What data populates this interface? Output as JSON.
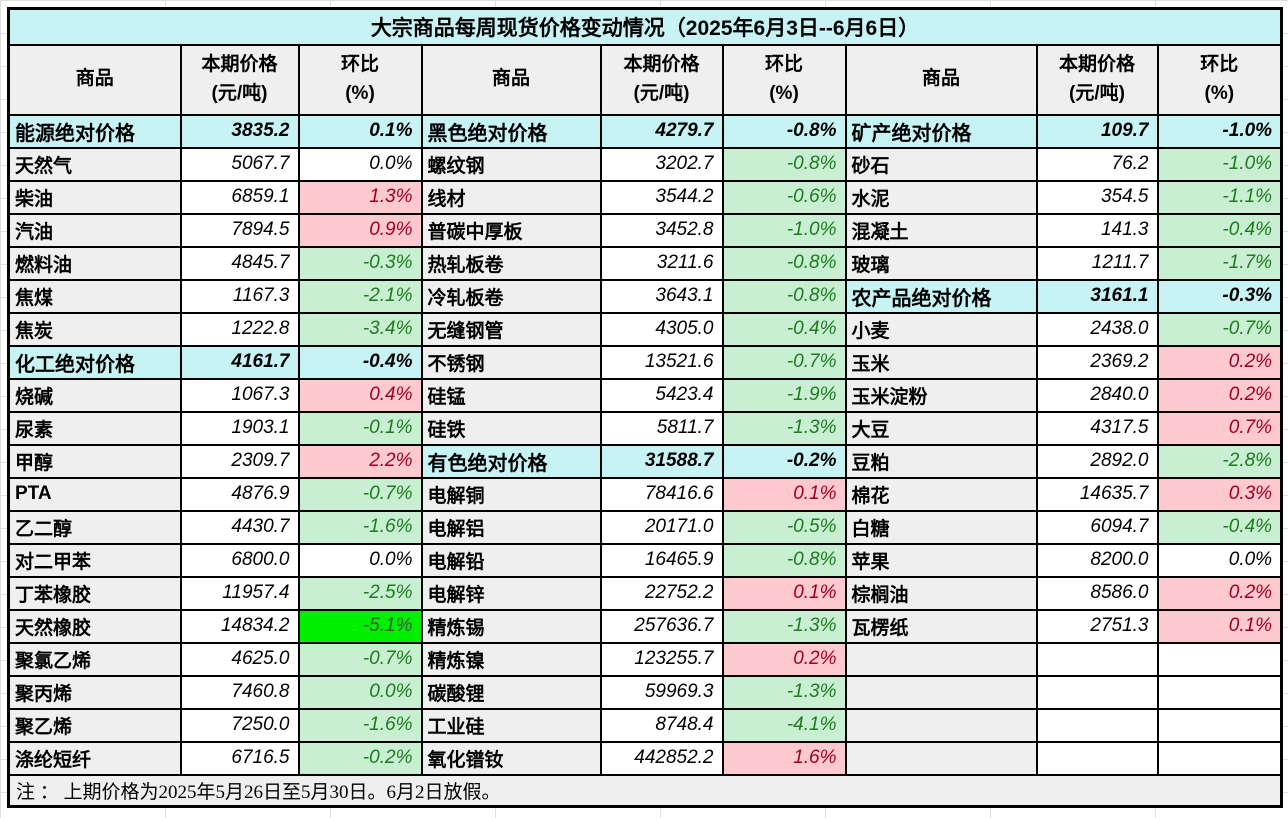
{
  "title": "大宗商品每周现货价格变动情况（2025年6月3日--6月6日）",
  "note": "注 ： 上期价格为2025年5月26日至5月30日。6月2日放假。",
  "header": {
    "commodity": "商品",
    "price_line1": "本期价格",
    "price_line2": "(元/吨)",
    "pct_line1": "环比",
    "pct_line2": "(%)"
  },
  "colors": {
    "cyan": "#c8f3f4",
    "up_bg": "#ffc9d0",
    "up_text": "#a00020",
    "down_bg": "#c8efd2",
    "down_text": "#1e7b1e",
    "strong_bg": "#00ee00",
    "strong_text": "#3a5a3a"
  },
  "groups": [
    {
      "rows": [
        {
          "n": "能源绝对价格",
          "p": "3835.2",
          "c": "0.1%",
          "t": "cat"
        },
        {
          "n": "天然气",
          "p": "5067.7",
          "c": "0.0%",
          "t": "flat"
        },
        {
          "n": "柴油",
          "p": "6859.1",
          "c": "1.3%",
          "t": "up"
        },
        {
          "n": "汽油",
          "p": "7894.5",
          "c": "0.9%",
          "t": "up"
        },
        {
          "n": "燃料油",
          "p": "4845.7",
          "c": "-0.3%",
          "t": "down"
        },
        {
          "n": "焦煤",
          "p": "1167.3",
          "c": "-2.1%",
          "t": "down"
        },
        {
          "n": "焦炭",
          "p": "1222.8",
          "c": "-3.4%",
          "t": "down"
        },
        {
          "n": "化工绝对价格",
          "p": "4161.7",
          "c": "-0.4%",
          "t": "cat"
        },
        {
          "n": "烧碱",
          "p": "1067.3",
          "c": "0.4%",
          "t": "up"
        },
        {
          "n": "尿素",
          "p": "1903.1",
          "c": "-0.1%",
          "t": "down"
        },
        {
          "n": "甲醇",
          "p": "2309.7",
          "c": "2.2%",
          "t": "up"
        },
        {
          "n": "PTA",
          "p": "4876.9",
          "c": "-0.7%",
          "t": "down"
        },
        {
          "n": "乙二醇",
          "p": "4430.7",
          "c": "-1.6%",
          "t": "down"
        },
        {
          "n": "对二甲苯",
          "p": "6800.0",
          "c": "0.0%",
          "t": "flat"
        },
        {
          "n": "丁苯橡胶",
          "p": "11957.4",
          "c": "-2.5%",
          "t": "down"
        },
        {
          "n": "天然橡胶",
          "p": "14834.2",
          "c": "-5.1%",
          "t": "strong"
        },
        {
          "n": "聚氯乙烯",
          "p": "4625.0",
          "c": "-0.7%",
          "t": "down"
        },
        {
          "n": "聚丙烯",
          "p": "7460.8",
          "c": "0.0%",
          "t": "down"
        },
        {
          "n": "聚乙烯",
          "p": "7250.0",
          "c": "-1.6%",
          "t": "down"
        },
        {
          "n": "涤纶短纤",
          "p": "6716.5",
          "c": "-0.2%",
          "t": "down"
        }
      ]
    },
    {
      "rows": [
        {
          "n": "黑色绝对价格",
          "p": "4279.7",
          "c": "-0.8%",
          "t": "cat"
        },
        {
          "n": "螺纹钢",
          "p": "3202.7",
          "c": "-0.8%",
          "t": "down"
        },
        {
          "n": "线材",
          "p": "3544.2",
          "c": "-0.6%",
          "t": "down"
        },
        {
          "n": "普碳中厚板",
          "p": "3452.8",
          "c": "-1.0%",
          "t": "down"
        },
        {
          "n": "热轧板卷",
          "p": "3211.6",
          "c": "-0.8%",
          "t": "down"
        },
        {
          "n": "冷轧板卷",
          "p": "3643.1",
          "c": "-0.8%",
          "t": "down"
        },
        {
          "n": "无缝钢管",
          "p": "4305.0",
          "c": "-0.4%",
          "t": "down"
        },
        {
          "n": "不锈钢",
          "p": "13521.6",
          "c": "-0.7%",
          "t": "down"
        },
        {
          "n": "硅锰",
          "p": "5423.4",
          "c": "-1.9%",
          "t": "down"
        },
        {
          "n": "硅铁",
          "p": "5811.7",
          "c": "-1.3%",
          "t": "down"
        },
        {
          "n": "有色绝对价格",
          "p": "31588.7",
          "c": "-0.2%",
          "t": "cat"
        },
        {
          "n": "电解铜",
          "p": "78416.6",
          "c": "0.1%",
          "t": "up"
        },
        {
          "n": "电解铝",
          "p": "20171.0",
          "c": "-0.5%",
          "t": "down"
        },
        {
          "n": "电解铅",
          "p": "16465.9",
          "c": "-0.8%",
          "t": "down"
        },
        {
          "n": "电解锌",
          "p": "22752.2",
          "c": "0.1%",
          "t": "up"
        },
        {
          "n": "精炼锡",
          "p": "257636.7",
          "c": "-1.3%",
          "t": "down"
        },
        {
          "n": "精炼镍",
          "p": "123255.7",
          "c": "0.2%",
          "t": "up"
        },
        {
          "n": "碳酸锂",
          "p": "59969.3",
          "c": "-1.3%",
          "t": "down"
        },
        {
          "n": "工业硅",
          "p": "8748.4",
          "c": "-4.1%",
          "t": "down"
        },
        {
          "n": "氧化镨钕",
          "p": "442852.2",
          "c": "1.6%",
          "t": "up"
        }
      ]
    },
    {
      "rows": [
        {
          "n": "矿产绝对价格",
          "p": "109.7",
          "c": "-1.0%",
          "t": "cat"
        },
        {
          "n": "砂石",
          "p": "76.2",
          "c": "-1.0%",
          "t": "down"
        },
        {
          "n": "水泥",
          "p": "354.5",
          "c": "-1.1%",
          "t": "down"
        },
        {
          "n": "混凝土",
          "p": "141.3",
          "c": "-0.4%",
          "t": "down"
        },
        {
          "n": "玻璃",
          "p": "1211.7",
          "c": "-1.7%",
          "t": "down"
        },
        {
          "n": "农产品绝对价格",
          "p": "3161.1",
          "c": "-0.3%",
          "t": "cat"
        },
        {
          "n": "小麦",
          "p": "2438.0",
          "c": "-0.7%",
          "t": "down"
        },
        {
          "n": "玉米",
          "p": "2369.2",
          "c": "0.2%",
          "t": "up"
        },
        {
          "n": "玉米淀粉",
          "p": "2840.0",
          "c": "0.2%",
          "t": "up"
        },
        {
          "n": "大豆",
          "p": "4317.5",
          "c": "0.7%",
          "t": "up"
        },
        {
          "n": "豆粕",
          "p": "2892.0",
          "c": "-2.8%",
          "t": "down"
        },
        {
          "n": "棉花",
          "p": "14635.7",
          "c": "0.3%",
          "t": "up"
        },
        {
          "n": "白糖",
          "p": "6094.7",
          "c": "-0.4%",
          "t": "down"
        },
        {
          "n": "苹果",
          "p": "8200.0",
          "c": "0.0%",
          "t": "flat"
        },
        {
          "n": "棕榈油",
          "p": "8586.0",
          "c": "0.2%",
          "t": "up"
        },
        {
          "n": "瓦楞纸",
          "p": "2751.3",
          "c": "0.1%",
          "t": "up"
        },
        {
          "n": "",
          "p": "",
          "c": "",
          "t": "empty"
        },
        {
          "n": "",
          "p": "",
          "c": "",
          "t": "empty"
        },
        {
          "n": "",
          "p": "",
          "c": "",
          "t": "empty"
        },
        {
          "n": "",
          "p": "",
          "c": "",
          "t": "empty"
        }
      ]
    }
  ]
}
